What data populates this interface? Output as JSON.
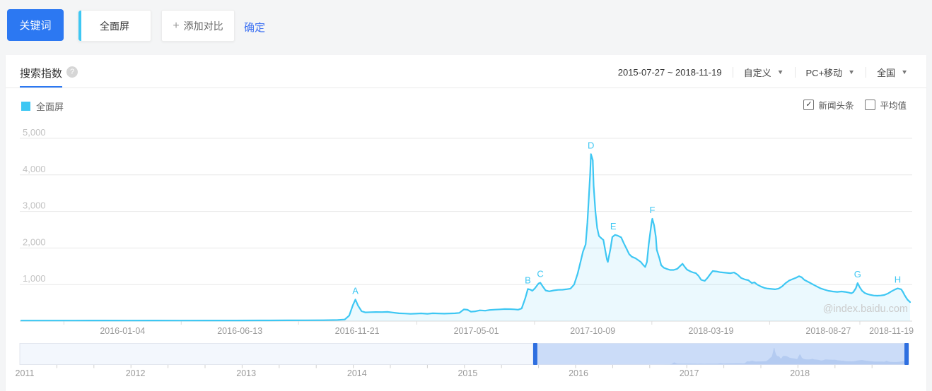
{
  "toolbar": {
    "keyword_button": "关键词",
    "keyword_chip": "全面屏",
    "add_compare_plus": "+",
    "add_compare": "添加对比",
    "confirm": "确定"
  },
  "header": {
    "tab": "搜索指数",
    "help_icon": "?",
    "date_range": "2015-07-27 ~ 2018-11-19",
    "range_mode": "自定义",
    "platform": "PC+移动",
    "region": "全国",
    "caret_icon": "▼"
  },
  "legend": {
    "series_label": "全面屏",
    "series_color": "#3ec7f3",
    "check_icon": "✓",
    "checkboxes": [
      {
        "label": "新闻头条",
        "checked": true
      },
      {
        "label": "平均值",
        "checked": false
      }
    ]
  },
  "watermark": "@index.baidu.com",
  "chart_data": {
    "type": "area",
    "series_name": "全面屏",
    "line_color": "#3ec7f3",
    "fill_color": "rgba(62,199,243,0.10)",
    "ylim": [
      0,
      5000
    ],
    "grid": true,
    "y_ticks": [
      "1,000",
      "2,000",
      "3,000",
      "4,000",
      "5,000"
    ],
    "y_tick_values": [
      1000,
      2000,
      3000,
      4000,
      5000
    ],
    "x_range": "2015-07-27 ~ 2018-11-19",
    "x_axis_labels": [
      {
        "label": "2016-01-04",
        "pct": 11.4
      },
      {
        "label": "2016-06-13",
        "pct": 24.6
      },
      {
        "label": "2016-11-21",
        "pct": 37.8
      },
      {
        "label": "2017-05-01",
        "pct": 51.2
      },
      {
        "label": "2017-10-09",
        "pct": 64.3
      },
      {
        "label": "2018-03-19",
        "pct": 77.6
      },
      {
        "label": "2018-08-27",
        "pct": 90.8
      },
      {
        "label": "2018-11-19",
        "pct": 97.9
      }
    ],
    "annotations": [
      {
        "label": "A",
        "pct": 37.6,
        "value": 590
      },
      {
        "label": "B",
        "pct": 57.0,
        "value": 880
      },
      {
        "label": "C",
        "pct": 58.4,
        "value": 1050
      },
      {
        "label": "D",
        "pct": 64.1,
        "value": 4570
      },
      {
        "label": "E",
        "pct": 66.6,
        "value": 2360
      },
      {
        "label": "F",
        "pct": 71.0,
        "value": 2800
      },
      {
        "label": "G",
        "pct": 94.1,
        "value": 1040
      },
      {
        "label": "H",
        "pct": 98.6,
        "value": 895
      }
    ],
    "points": [
      [
        0,
        15
      ],
      [
        3,
        16
      ],
      [
        6,
        15
      ],
      [
        9,
        17
      ],
      [
        12,
        15
      ],
      [
        15,
        17
      ],
      [
        18,
        16
      ],
      [
        21,
        18
      ],
      [
        24,
        18
      ],
      [
        27,
        20
      ],
      [
        30,
        22
      ],
      [
        32,
        24
      ],
      [
        34,
        26
      ],
      [
        35.6,
        32
      ],
      [
        36.4,
        45
      ],
      [
        36.9,
        150
      ],
      [
        37.3,
        430
      ],
      [
        37.6,
        590
      ],
      [
        37.9,
        420
      ],
      [
        38.3,
        270
      ],
      [
        38.7,
        240
      ],
      [
        39.3,
        245
      ],
      [
        39.9,
        250
      ],
      [
        40.6,
        248
      ],
      [
        41.2,
        252
      ],
      [
        41.8,
        235
      ],
      [
        42.5,
        215
      ],
      [
        43.1,
        208
      ],
      [
        43.8,
        198
      ],
      [
        44.4,
        205
      ],
      [
        45,
        212
      ],
      [
        45.7,
        200
      ],
      [
        46.3,
        215
      ],
      [
        46.9,
        210
      ],
      [
        47.6,
        205
      ],
      [
        48.2,
        210
      ],
      [
        48.8,
        215
      ],
      [
        49.3,
        225
      ],
      [
        49.8,
        320
      ],
      [
        50.2,
        310
      ],
      [
        50.6,
        258
      ],
      [
        51.1,
        268
      ],
      [
        51.6,
        295
      ],
      [
        52.2,
        285
      ],
      [
        52.7,
        305
      ],
      [
        53.3,
        315
      ],
      [
        53.9,
        322
      ],
      [
        54.4,
        330
      ],
      [
        55,
        328
      ],
      [
        55.5,
        322
      ],
      [
        55.9,
        312
      ],
      [
        56.3,
        345
      ],
      [
        56.7,
        620
      ],
      [
        57,
        880
      ],
      [
        57.3,
        860
      ],
      [
        57.5,
        830
      ],
      [
        57.8,
        900
      ],
      [
        58.2,
        1030
      ],
      [
        58.4,
        1050
      ],
      [
        58.7,
        940
      ],
      [
        59,
        840
      ],
      [
        59.4,
        815
      ],
      [
        59.9,
        840
      ],
      [
        60.4,
        855
      ],
      [
        60.9,
        860
      ],
      [
        61.3,
        870
      ],
      [
        61.8,
        890
      ],
      [
        62.2,
        1000
      ],
      [
        62.6,
        1300
      ],
      [
        62.9,
        1600
      ],
      [
        63.2,
        1900
      ],
      [
        63.5,
        2100
      ],
      [
        63.7,
        2700
      ],
      [
        64,
        4000
      ],
      [
        64.1,
        4570
      ],
      [
        64.3,
        4400
      ],
      [
        64.4,
        3700
      ],
      [
        64.6,
        3000
      ],
      [
        64.8,
        2550
      ],
      [
        65,
        2330
      ],
      [
        65.2,
        2280
      ],
      [
        65.5,
        2220
      ],
      [
        65.7,
        1950
      ],
      [
        65.9,
        1680
      ],
      [
        66,
        1620
      ],
      [
        66.3,
        1990
      ],
      [
        66.5,
        2300
      ],
      [
        66.8,
        2360
      ],
      [
        67.1,
        2340
      ],
      [
        67.5,
        2290
      ],
      [
        67.8,
        2130
      ],
      [
        68.1,
        1980
      ],
      [
        68.4,
        1830
      ],
      [
        68.7,
        1760
      ],
      [
        69.1,
        1720
      ],
      [
        69.4,
        1670
      ],
      [
        69.7,
        1620
      ],
      [
        69.9,
        1560
      ],
      [
        70.2,
        1480
      ],
      [
        70.4,
        1620
      ],
      [
        70.6,
        2100
      ],
      [
        70.9,
        2660
      ],
      [
        71,
        2800
      ],
      [
        71.2,
        2620
      ],
      [
        71.4,
        2300
      ],
      [
        71.5,
        1950
      ],
      [
        71.8,
        1720
      ],
      [
        72,
        1530
      ],
      [
        72.3,
        1460
      ],
      [
        72.6,
        1430
      ],
      [
        73,
        1400
      ],
      [
        73.4,
        1400
      ],
      [
        73.8,
        1430
      ],
      [
        74.1,
        1500
      ],
      [
        74.4,
        1570
      ],
      [
        74.6,
        1500
      ],
      [
        74.9,
        1410
      ],
      [
        75.3,
        1360
      ],
      [
        75.6,
        1330
      ],
      [
        75.9,
        1310
      ],
      [
        76.2,
        1240
      ],
      [
        76.5,
        1130
      ],
      [
        76.9,
        1100
      ],
      [
        77.2,
        1180
      ],
      [
        77.5,
        1280
      ],
      [
        77.8,
        1370
      ],
      [
        78.2,
        1360
      ],
      [
        78.6,
        1340
      ],
      [
        79,
        1330
      ],
      [
        79.4,
        1320
      ],
      [
        79.8,
        1310
      ],
      [
        80.2,
        1330
      ],
      [
        80.6,
        1270
      ],
      [
        81,
        1180
      ],
      [
        81.4,
        1140
      ],
      [
        81.8,
        1120
      ],
      [
        82.2,
        1040
      ],
      [
        82.5,
        1060
      ],
      [
        82.8,
        1000
      ],
      [
        83.2,
        950
      ],
      [
        83.6,
        910
      ],
      [
        84,
        890
      ],
      [
        84.4,
        880
      ],
      [
        84.8,
        870
      ],
      [
        85.2,
        890
      ],
      [
        85.6,
        950
      ],
      [
        86,
        1040
      ],
      [
        86.4,
        1110
      ],
      [
        86.8,
        1150
      ],
      [
        87.2,
        1190
      ],
      [
        87.5,
        1230
      ],
      [
        87.8,
        1200
      ],
      [
        88.1,
        1130
      ],
      [
        88.5,
        1080
      ],
      [
        88.8,
        1040
      ],
      [
        89.1,
        1000
      ],
      [
        89.5,
        950
      ],
      [
        89.9,
        900
      ],
      [
        90.4,
        860
      ],
      [
        90.8,
        830
      ],
      [
        91.3,
        810
      ],
      [
        91.8,
        800
      ],
      [
        92.3,
        810
      ],
      [
        92.7,
        800
      ],
      [
        93.1,
        780
      ],
      [
        93.4,
        760
      ],
      [
        93.6,
        790
      ],
      [
        93.9,
        900
      ],
      [
        94.1,
        1040
      ],
      [
        94.3,
        940
      ],
      [
        94.6,
        830
      ],
      [
        94.9,
        770
      ],
      [
        95.2,
        740
      ],
      [
        95.5,
        720
      ],
      [
        95.9,
        700
      ],
      [
        96.3,
        695
      ],
      [
        96.7,
        700
      ],
      [
        97.1,
        715
      ],
      [
        97.5,
        755
      ],
      [
        97.9,
        815
      ],
      [
        98.3,
        865
      ],
      [
        98.6,
        895
      ],
      [
        99,
        870
      ],
      [
        99.2,
        800
      ],
      [
        99.4,
        700
      ],
      [
        99.7,
        590
      ],
      [
        100,
        520
      ]
    ]
  },
  "timeline": {
    "years": [
      "2011",
      "2012",
      "2013",
      "2014",
      "2015",
      "2016",
      "2017",
      "2018"
    ],
    "selection_start_pct": 57.75,
    "selection_end_pct": 100,
    "selected_range": "2015-07-27 ~ 2018-11-19",
    "selected_fill": "#cbdcf8",
    "unselected_fill": "#f3f7fd",
    "handle_color": "#2e6fe0"
  }
}
